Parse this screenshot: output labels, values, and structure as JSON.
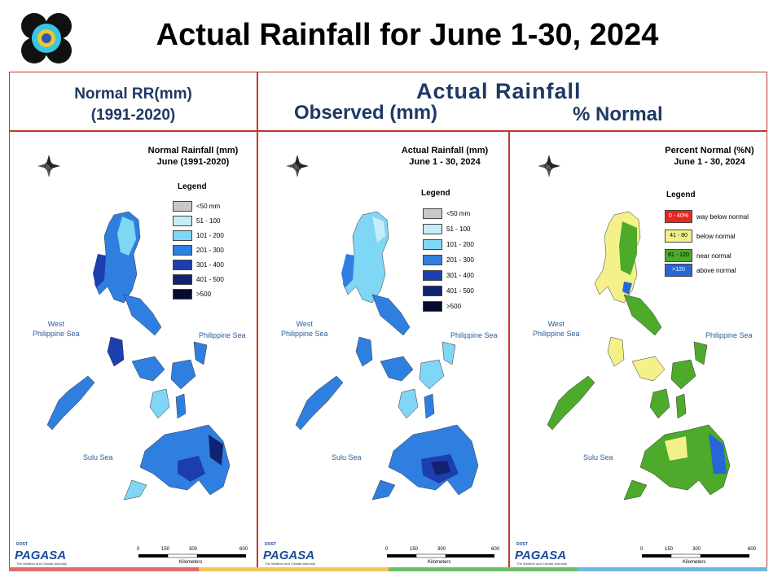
{
  "header": {
    "title": "Actual Rainfall for June 1-30, 2024",
    "normal_title_line1": "Normal RR(mm)",
    "normal_title_line2": "(1991-2020)",
    "actual_title": "Actual Rainfall",
    "observed_title": "Observed (mm)",
    "percent_title": "% Normal"
  },
  "panels": [
    {
      "title_line1": "Normal Rainfall (mm)",
      "title_line2": "June (1991-2020)",
      "legend_title": "Legend",
      "legend": [
        {
          "label": "<50 mm",
          "color": "#c8c8c8"
        },
        {
          "label": "51 - 100",
          "color": "#c6ecfa"
        },
        {
          "label": "101 - 200",
          "color": "#7fd6f5"
        },
        {
          "label": "201 - 300",
          "color": "#2f7fe0"
        },
        {
          "label": "301 - 400",
          "color": "#1d3fae"
        },
        {
          "label": "401 - 500",
          "color": "#0f2371"
        },
        {
          "label": ">500",
          "color": "#050a2e"
        }
      ]
    },
    {
      "title_line1": "Actual Rainfall (mm)",
      "title_line2": "June 1 - 30, 2024",
      "legend_title": "Legend",
      "legend": [
        {
          "label": "<50 mm",
          "color": "#c8c8c8"
        },
        {
          "label": "51 - 100",
          "color": "#c6ecfa"
        },
        {
          "label": "101 - 200",
          "color": "#7fd6f5"
        },
        {
          "label": "201 - 300",
          "color": "#2f7fe0"
        },
        {
          "label": "301 - 400",
          "color": "#1d3fae"
        },
        {
          "label": "401 - 500",
          "color": "#0f2371"
        },
        {
          "label": ">500",
          "color": "#050a2e"
        }
      ]
    },
    {
      "title_line1": "Percent Normal (%N)",
      "title_line2": "June 1 - 30, 2024",
      "legend_title": "Legend",
      "legend": [
        {
          "code": "0 - 40%",
          "label": "way below normal",
          "color": "#e8281e"
        },
        {
          "code": "41 - 80",
          "label": "below normal",
          "color": "#f4f18a"
        },
        {
          "code": "81 - 120",
          "label": "near normal",
          "color": "#4daa2a"
        },
        {
          "code": ">120",
          "label": "above normal",
          "color": "#2766d6"
        }
      ]
    }
  ],
  "seas": {
    "west_line1": "West",
    "west_line2": "Philippine Sea",
    "east": "Philippine Sea",
    "south": "Sulu Sea"
  },
  "scale": {
    "ticks": [
      "0",
      "150",
      "300",
      "600"
    ],
    "unit": "Kilometers"
  },
  "compass": {
    "n": "N",
    "s": "S",
    "e": "E",
    "w": "W"
  },
  "branding": {
    "agency": "PAGASA",
    "dost": "DOST",
    "tagline": "The Weather and Climate Authority"
  },
  "stripe_colors": [
    "#e06b6b",
    "#f3c55c",
    "#6cbf6c",
    "#6fb7e3"
  ]
}
